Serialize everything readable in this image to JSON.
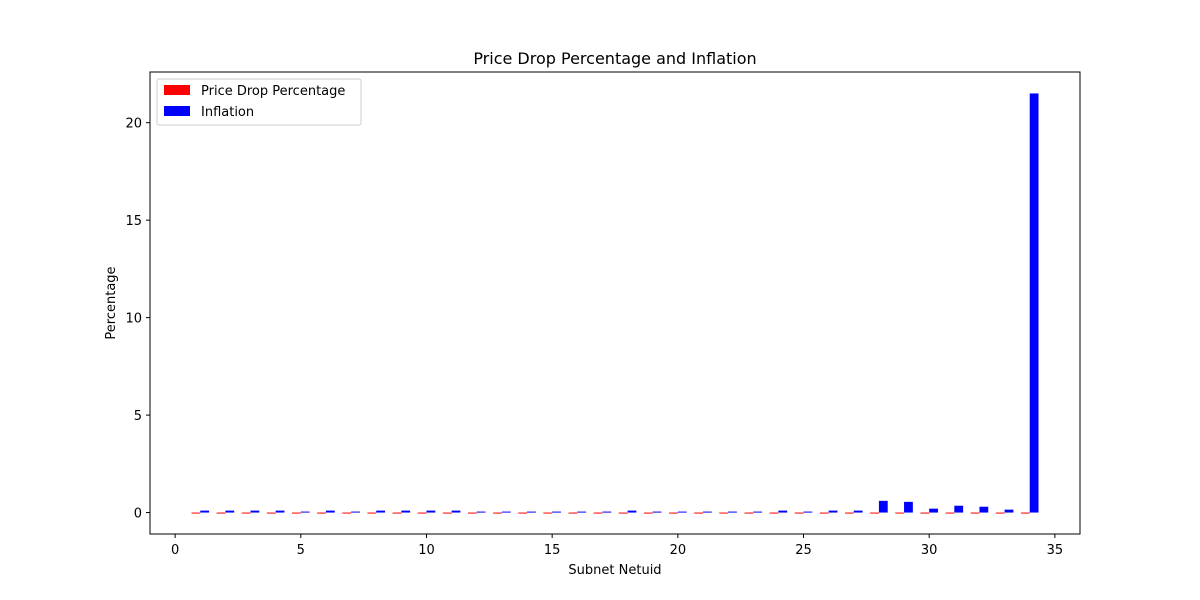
{
  "chart_data": {
    "type": "bar",
    "title": "Price Drop Percentage and Inflation",
    "xlabel": "Subnet Netuid",
    "ylabel": "Percentage",
    "xlim": [
      -1,
      36
    ],
    "ylim": [
      -1.1,
      22.6
    ],
    "xticks": [
      0,
      5,
      10,
      15,
      20,
      25,
      30,
      35
    ],
    "yticks": [
      0,
      5,
      10,
      15,
      20
    ],
    "legend_position": "top-left",
    "x": [
      1,
      2,
      3,
      4,
      5,
      6,
      7,
      8,
      9,
      10,
      11,
      12,
      13,
      14,
      15,
      16,
      17,
      18,
      19,
      20,
      21,
      22,
      23,
      24,
      25,
      26,
      27,
      28,
      29,
      30,
      31,
      32,
      33,
      34
    ],
    "series": [
      {
        "name": "Price Drop Percentage",
        "color": "#ff0000",
        "values": [
          0,
          0,
          0,
          0,
          0,
          0,
          0,
          0,
          0,
          0,
          0,
          0,
          0,
          0,
          0,
          0,
          0,
          0,
          0,
          0,
          0,
          0,
          0,
          0,
          0,
          0,
          0,
          0,
          0,
          0,
          0,
          0,
          0,
          0
        ]
      },
      {
        "name": "Inflation",
        "color": "#0000ff",
        "values": [
          0.1,
          0.1,
          0.1,
          0.1,
          0.05,
          0.1,
          0.05,
          0.1,
          0.1,
          0.1,
          0.1,
          0.05,
          0.05,
          0.05,
          0.05,
          0.05,
          0.05,
          0.1,
          0.05,
          0.05,
          0.05,
          0.05,
          0.05,
          0.1,
          0.05,
          0.1,
          0.1,
          0.6,
          0.55,
          0.2,
          0.35,
          0.3,
          0.15,
          21.5
        ]
      }
    ]
  }
}
